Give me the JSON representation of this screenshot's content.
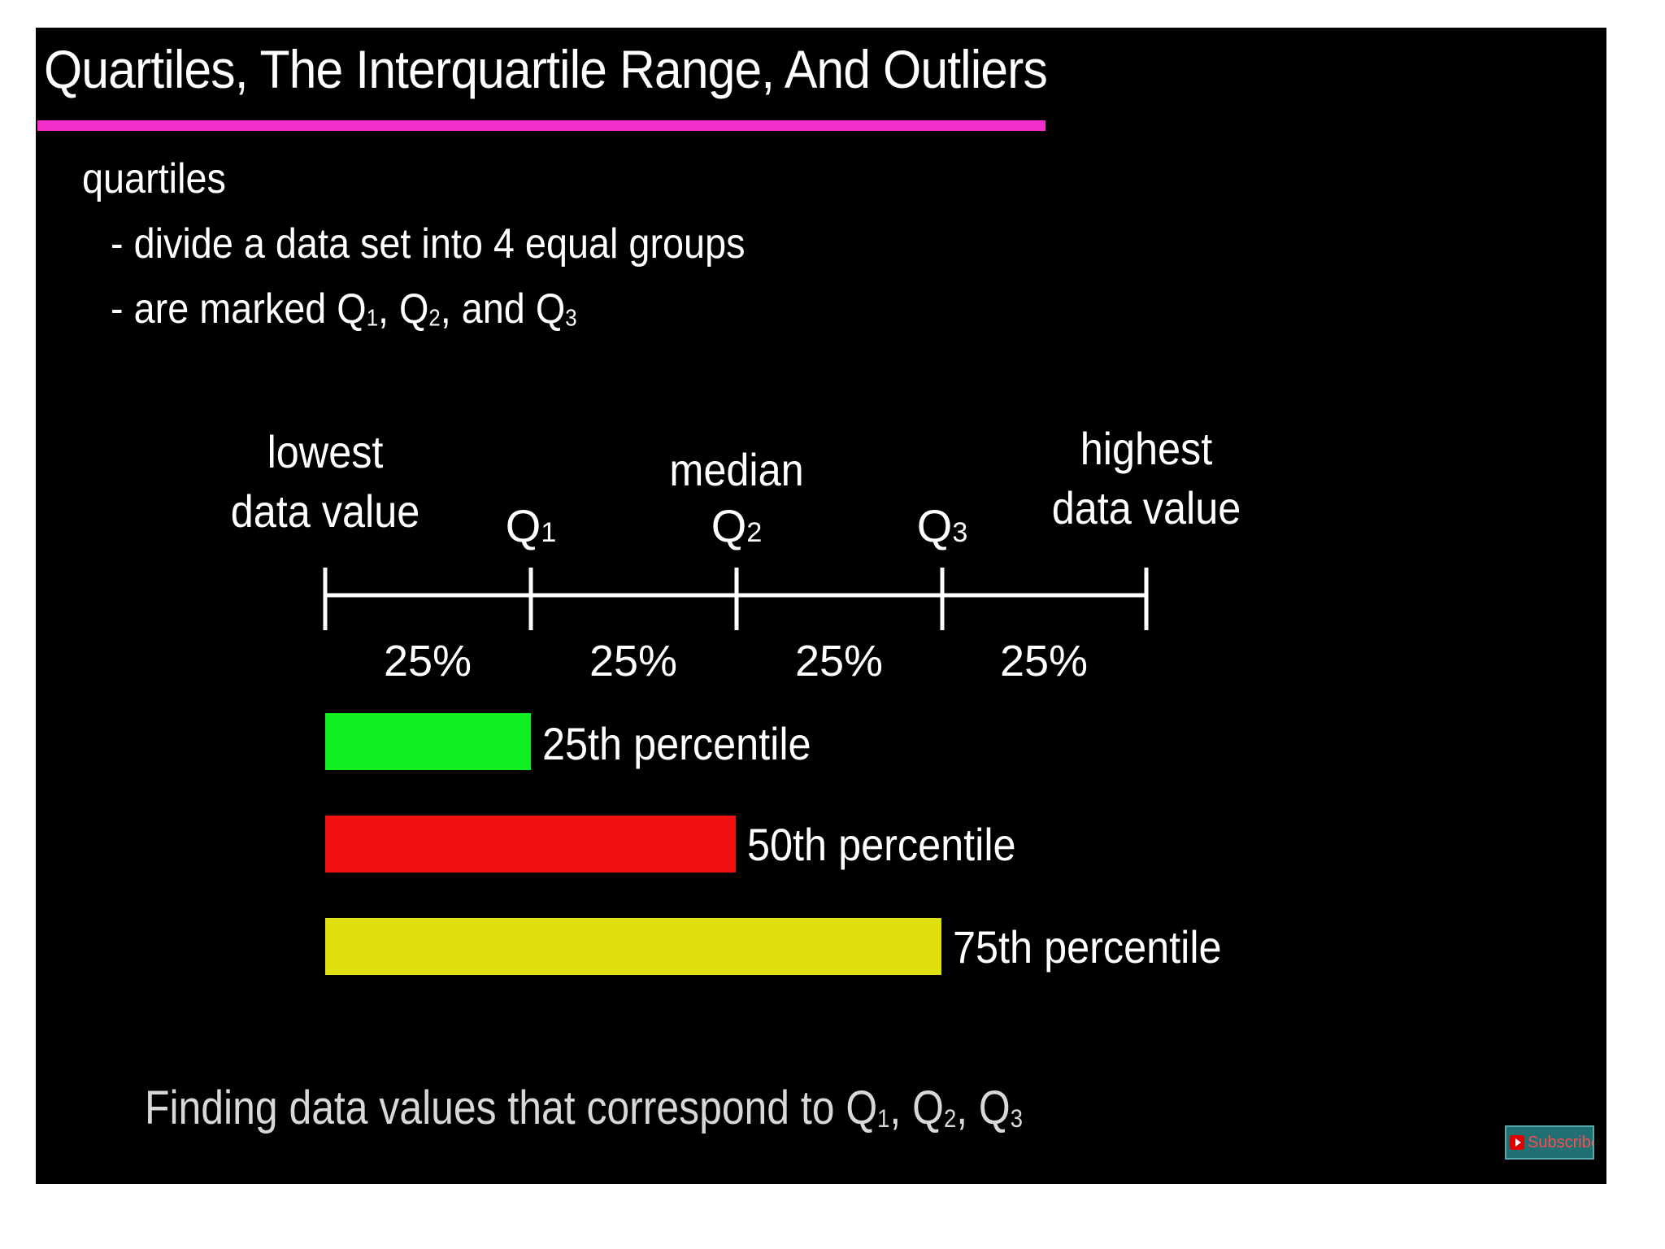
{
  "title": "Quartiles, The Interquartile Range, And Outliers",
  "colors": {
    "title_rule": "#f030c8",
    "line": "#ffffff",
    "bar_25": "#10f020",
    "bar_50": "#f01010",
    "bar_75": "#e0e010",
    "footer_text": "#d8d8d8"
  },
  "bullets": {
    "heading": "quartiles",
    "item1": "- divide a data set into 4 equal groups",
    "item2_prefix": "- are marked Q",
    "item2_sub1": "1",
    "item2_sep1": ", Q",
    "item2_sub2": "2",
    "item2_sep2": ", and Q",
    "item2_sub3": "3"
  },
  "number_line": {
    "lowest_line1": "lowest",
    "lowest_line2": "data value",
    "median_label": "median",
    "highest_line1": "highest",
    "highest_line2": "data value",
    "q_letter": "Q",
    "q1_sub": "1",
    "q2_sub": "2",
    "q3_sub": "3",
    "segments": [
      "25%",
      "25%",
      "25%",
      "25%"
    ]
  },
  "percentile_bars": [
    {
      "label": "25th percentile",
      "fraction": 0.25
    },
    {
      "label": "50th percentile",
      "fraction": 0.5
    },
    {
      "label": "75th percentile",
      "fraction": 0.75
    }
  ],
  "footer": {
    "prefix": "Finding data values that correspond to Q",
    "sub1": "1",
    "sep1": ", Q",
    "sub2": "2",
    "sep2": ", Q",
    "sub3": "3"
  },
  "subscribe_label": "Subscribe"
}
